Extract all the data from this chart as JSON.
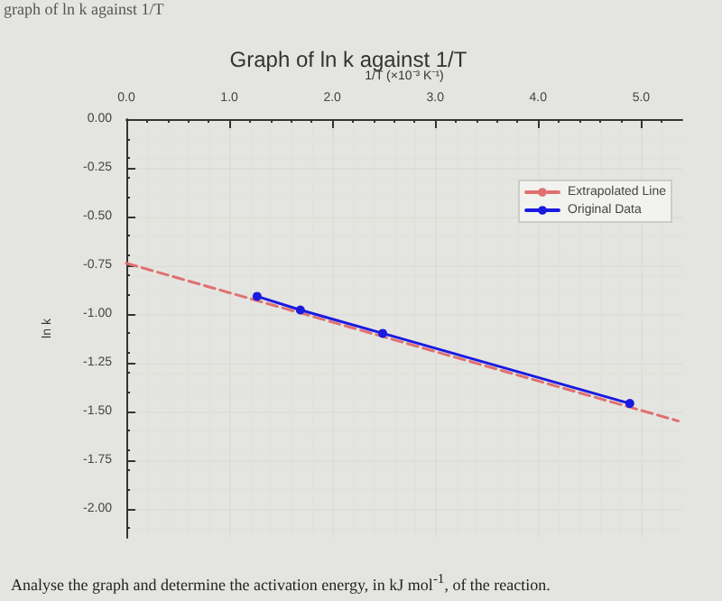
{
  "chart_data": {
    "type": "line",
    "title": "Graph of ln k against 1/T",
    "xlabel": "1/T (×10⁻³ K⁻¹)",
    "ylabel": "ln k",
    "annotations": [
      "graph of ln k against 1/T",
      "Analyse the graph and determine the activation energy, in kJ mol$^{-1}$, of the reaction."
    ],
    "series": [
      {
        "name": "Extrapolated Line",
        "color": "#e07070",
        "line_style": "dashed",
        "marker": "none",
        "x": [
          0,
          5.36
        ],
        "values": [
          -0.74,
          -1.55
        ]
      },
      {
        "name": "Original Data",
        "color": "#1a1ae0",
        "line_style": "solid",
        "marker": "circle",
        "x": [
          1.27,
          1.69,
          2.49,
          4.89
        ],
        "values": [
          -0.91,
          -0.98,
          -1.1,
          -1.46
        ]
      }
    ],
    "xlim": [
      0,
      5.4
    ],
    "xticks": [
      {
        "value": 0,
        "label": "0.0"
      },
      {
        "value": 1,
        "label": "1.0"
      },
      {
        "value": 2,
        "label": "2.0"
      },
      {
        "value": 3,
        "label": "3.0"
      },
      {
        "value": 4,
        "label": "4.0"
      },
      {
        "value": 5,
        "label": "5.0"
      }
    ],
    "ylim": [
      -2.15,
      0
    ],
    "yticks": [
      {
        "value": 0,
        "label": "0.00"
      },
      {
        "value": -0.25,
        "label": "-0.25"
      },
      {
        "value": -0.5,
        "label": "-0.50"
      },
      {
        "value": -0.75,
        "label": "-0.75"
      },
      {
        "value": -1,
        "label": "-1.00"
      },
      {
        "value": -1.25,
        "label": "-1.25"
      },
      {
        "value": -1.5,
        "label": "-1.50"
      },
      {
        "value": -1.75,
        "label": "-1.75"
      },
      {
        "value": -2,
        "label": "-2.00"
      }
    ],
    "grid": true,
    "legend": "top right"
  }
}
